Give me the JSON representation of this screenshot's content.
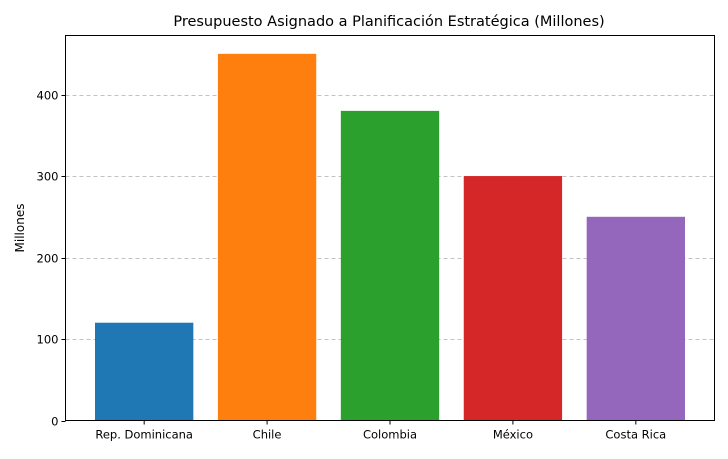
{
  "chart_data": {
    "type": "bar",
    "title": "Presupuesto Asignado a Planificación Estratégica (Millones)",
    "xlabel": "",
    "ylabel": "Millones",
    "categories": [
      "Rep. Dominicana",
      "Chile",
      "Colombia",
      "México",
      "Costa Rica"
    ],
    "values": [
      120,
      450,
      380,
      300,
      250
    ],
    "colors": [
      "#1f77b4",
      "#ff7f0e",
      "#2ca02c",
      "#d62728",
      "#9467bd"
    ],
    "ylim": [
      0,
      472.5
    ],
    "yticks": [
      0,
      100,
      200,
      300,
      400
    ],
    "ytick_labels": [
      "0",
      "100",
      "200",
      "300",
      "400"
    ],
    "grid": "y-dashed",
    "legend": "none"
  }
}
